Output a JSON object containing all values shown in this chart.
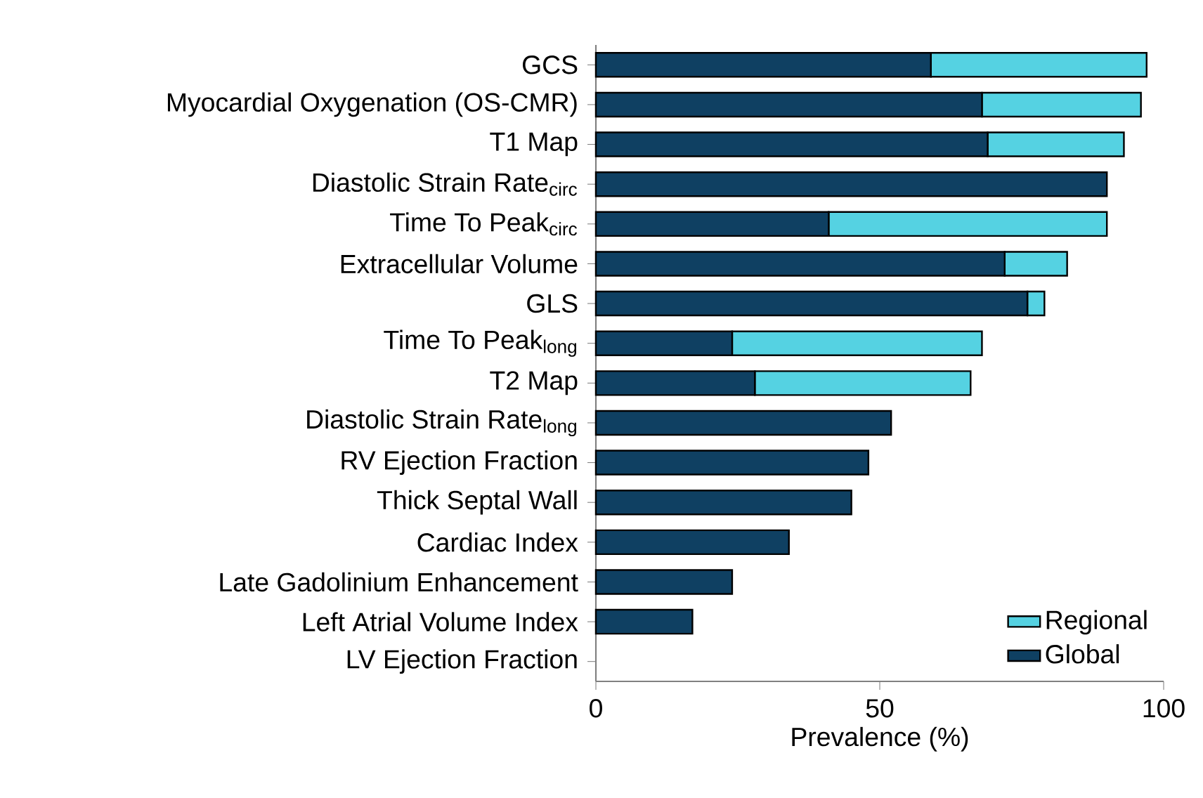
{
  "chart_data": {
    "type": "bar",
    "orientation": "horizontal",
    "stacked": true,
    "categories": [
      "GCS",
      "Myocardial Oxygenation (OS-CMR)",
      "T1 Map",
      "Diastolic Strain Rate$_{circ}$",
      "Time To Peak$_{circ}$",
      "Extracellular Volume",
      "GLS",
      "Time To Peak$_{long}$",
      "T2 Map",
      "Diastolic Strain Rate$_{long}$",
      "RV Ejection Fraction",
      "Thick Septal Wall",
      "Cardiac Index",
      "Late Gadolinium Enhancement",
      "Left Atrial Volume Index",
      "LV Ejection Fraction"
    ],
    "series": [
      {
        "name": "Global",
        "color": "#0f4062",
        "values": [
          59,
          68,
          69,
          90,
          41,
          72,
          76,
          24,
          28,
          52,
          48,
          45,
          34,
          24,
          17,
          0
        ]
      },
      {
        "name": "Regional",
        "color": "#55d2e2",
        "values": [
          38,
          28,
          24,
          0,
          49,
          11,
          3,
          44,
          38,
          0,
          0,
          0,
          0,
          0,
          0,
          0
        ]
      }
    ],
    "xlabel": "Prevalence  (%)",
    "xlim": [
      0,
      100
    ],
    "xticks": [
      0,
      50,
      100
    ],
    "legend": "bottom right"
  }
}
